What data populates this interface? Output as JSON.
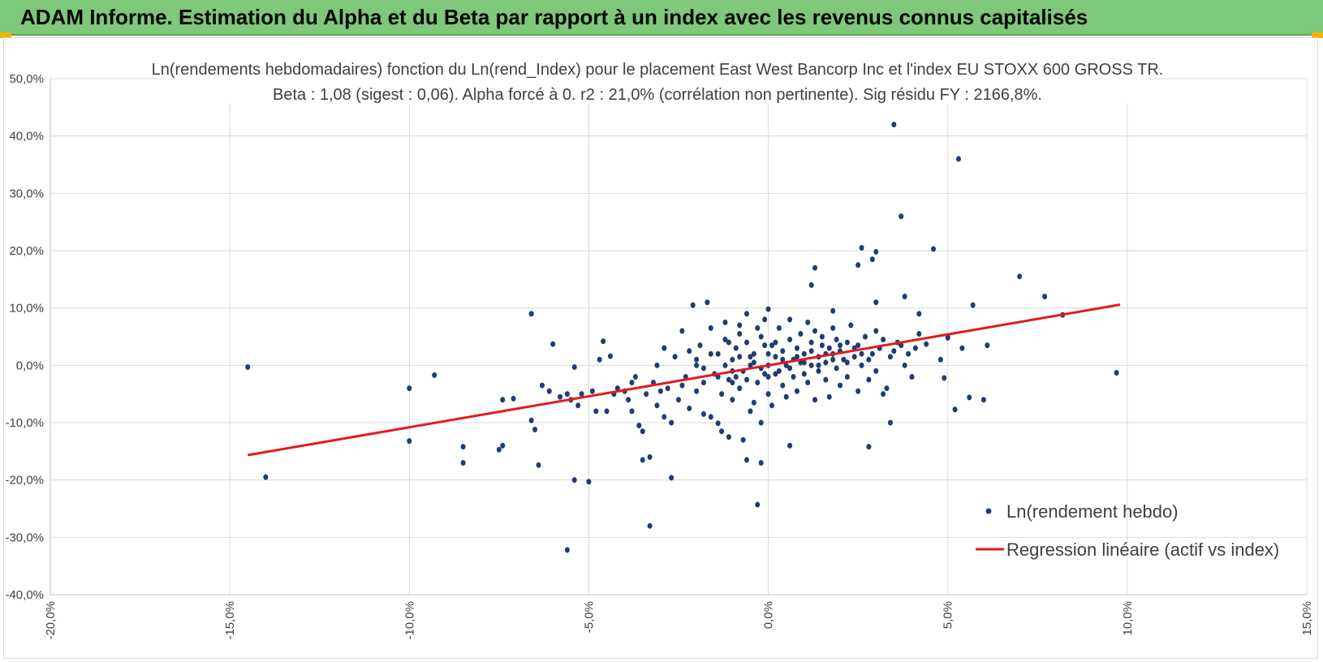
{
  "header": {
    "title": "ADAM Informe. Estimation du Alpha et du Beta par rapport à un index avec les revenus connus capitalisés"
  },
  "colors": {
    "banner": "#7dc87a",
    "points": "#1f3d73",
    "regression": "#e41a1a",
    "grid": "#d9d9d9"
  },
  "chart_data": {
    "type": "scatter",
    "title_line1": "Ln(rendements hebdomadaires) fonction du Ln(rend_Index) pour le placement East West Bancorp Inc et l'index EU STOXX 600 GROSS TR.",
    "title_line2": "Beta : 1,08 (sigest : 0,06). Alpha forcé à 0. r2 : 21,0% (corrélation non pertinente). Sig résidu FY : 2166,8%.",
    "xlim": [
      -0.2,
      0.15
    ],
    "ylim": [
      -0.4,
      0.5
    ],
    "x_ticks": [
      -0.2,
      -0.15,
      -0.1,
      -0.05,
      0.0,
      0.05,
      0.1,
      0.15
    ],
    "x_tick_labels": [
      "-20,0%",
      "-15,0%",
      "-10,0%",
      "-5,0%",
      "0,0%",
      "5,0%",
      "10,0%",
      "15,0%"
    ],
    "y_ticks": [
      0.5,
      0.4,
      0.3,
      0.2,
      0.1,
      0.0,
      -0.1,
      -0.2,
      -0.3,
      -0.4
    ],
    "y_tick_labels": [
      "50,0%",
      "40,0%",
      "30,0%",
      "20,0%",
      "10,0%",
      "0,0%",
      "-10,0%",
      "-20,0%",
      "-30,0%",
      "-40,0%"
    ],
    "grid": true,
    "legend": {
      "position": "bottom-right",
      "series_label": "Ln(rendement hebdo)",
      "regression_label": "Regression linéaire (actif vs index)"
    },
    "regression": {
      "beta": 1.08,
      "alpha": 0,
      "x_range": [
        -0.145,
        0.098
      ]
    },
    "series": [
      {
        "name": "Ln(rendement hebdo)",
        "points": [
          [
            -0.145,
            -0.003
          ],
          [
            -0.14,
            -0.195
          ],
          [
            -0.1,
            -0.04
          ],
          [
            -0.1,
            -0.132
          ],
          [
            -0.093,
            -0.017
          ],
          [
            -0.085,
            -0.142
          ],
          [
            -0.085,
            -0.17
          ],
          [
            -0.075,
            -0.147
          ],
          [
            -0.074,
            -0.14
          ],
          [
            -0.074,
            -0.06
          ],
          [
            -0.071,
            -0.058
          ],
          [
            -0.066,
            0.09
          ],
          [
            -0.066,
            -0.096
          ],
          [
            -0.065,
            -0.112
          ],
          [
            -0.064,
            -0.174
          ],
          [
            -0.063,
            -0.035
          ],
          [
            -0.061,
            -0.045
          ],
          [
            -0.06,
            0.037
          ],
          [
            -0.058,
            -0.055
          ],
          [
            -0.056,
            -0.05
          ],
          [
            -0.056,
            -0.322
          ],
          [
            -0.055,
            -0.06
          ],
          [
            -0.054,
            -0.003
          ],
          [
            -0.054,
            -0.2
          ],
          [
            -0.053,
            -0.07
          ],
          [
            -0.052,
            -0.05
          ],
          [
            -0.05,
            -0.203
          ],
          [
            -0.049,
            -0.045
          ],
          [
            -0.048,
            -0.08
          ],
          [
            -0.047,
            0.01
          ],
          [
            -0.046,
            0.042
          ],
          [
            -0.045,
            -0.08
          ],
          [
            -0.044,
            0.016
          ],
          [
            -0.043,
            -0.05
          ],
          [
            -0.042,
            -0.04
          ],
          [
            -0.04,
            -0.045
          ],
          [
            -0.039,
            -0.06
          ],
          [
            -0.038,
            -0.03
          ],
          [
            -0.038,
            -0.08
          ],
          [
            -0.037,
            -0.02
          ],
          [
            -0.036,
            -0.105
          ],
          [
            -0.035,
            -0.115
          ],
          [
            -0.035,
            -0.165
          ],
          [
            -0.034,
            -0.05
          ],
          [
            -0.033,
            -0.28
          ],
          [
            -0.033,
            -0.16
          ],
          [
            -0.032,
            -0.03
          ],
          [
            -0.031,
            -0.07
          ],
          [
            -0.031,
            0.0
          ],
          [
            -0.03,
            -0.045
          ],
          [
            -0.029,
            -0.09
          ],
          [
            -0.029,
            0.03
          ],
          [
            -0.028,
            -0.04
          ],
          [
            -0.027,
            -0.196
          ],
          [
            -0.027,
            -0.1
          ],
          [
            -0.026,
            0.015
          ],
          [
            -0.025,
            -0.06
          ],
          [
            -0.024,
            -0.035
          ],
          [
            -0.024,
            0.06
          ],
          [
            -0.023,
            -0.02
          ],
          [
            -0.022,
            0.025
          ],
          [
            -0.022,
            -0.075
          ],
          [
            -0.021,
            0.105
          ],
          [
            -0.02,
            -0.045
          ],
          [
            -0.02,
            0.0
          ],
          [
            -0.019,
            0.035
          ],
          [
            -0.018,
            -0.085
          ],
          [
            -0.018,
            -0.03
          ],
          [
            -0.017,
            0.11
          ],
          [
            -0.016,
            0.065
          ],
          [
            -0.016,
            -0.09
          ],
          [
            -0.015,
            -0.015
          ],
          [
            -0.014,
            0.02
          ],
          [
            -0.013,
            -0.05
          ],
          [
            -0.013,
            -0.115
          ],
          [
            -0.012,
            0.045
          ],
          [
            -0.011,
            -0.025
          ],
          [
            -0.011,
            -0.125
          ],
          [
            -0.01,
            0.01
          ],
          [
            -0.01,
            -0.06
          ],
          [
            -0.009,
            0.03
          ],
          [
            -0.008,
            -0.04
          ],
          [
            -0.008,
            0.07
          ],
          [
            -0.007,
            -0.01
          ],
          [
            -0.006,
            0.04
          ],
          [
            -0.005,
            -0.08
          ],
          [
            -0.005,
            0.0
          ],
          [
            -0.004,
            0.02
          ],
          [
            -0.003,
            -0.03
          ],
          [
            -0.002,
            -0.1
          ],
          [
            -0.002,
            0.05
          ],
          [
            -0.001,
            -0.015
          ],
          [
            -0.001,
            0.08
          ],
          [
            0.0,
            0.0
          ],
          [
            0.0,
            -0.05
          ],
          [
            -0.014,
            -0.101
          ],
          [
            -0.012,
            0.075
          ],
          [
            -0.011,
            0.04
          ],
          [
            -0.01,
            -0.03
          ],
          [
            -0.009,
            -0.02
          ],
          [
            -0.008,
            0.055
          ],
          [
            -0.007,
            -0.13
          ],
          [
            -0.006,
            0.09
          ],
          [
            -0.006,
            -0.165
          ],
          [
            -0.005,
            0.015
          ],
          [
            -0.004,
            -0.065
          ],
          [
            -0.003,
            0.065
          ],
          [
            -0.002,
            -0.17
          ],
          [
            -0.001,
            0.035
          ],
          [
            0.0,
            0.098
          ],
          [
            0.0,
            -0.02
          ],
          [
            0.001,
            0.035
          ],
          [
            0.001,
            -0.07
          ],
          [
            0.002,
            0.015
          ],
          [
            0.002,
            0.04
          ],
          [
            0.003,
            -0.01
          ],
          [
            0.003,
            0.065
          ],
          [
            0.004,
            -0.035
          ],
          [
            0.004,
            0.025
          ],
          [
            0.005,
            0.0
          ],
          [
            0.005,
            -0.055
          ],
          [
            0.006,
            0.045
          ],
          [
            0.006,
            0.08
          ],
          [
            0.007,
            -0.02
          ],
          [
            0.007,
            0.01
          ],
          [
            0.008,
            0.03
          ],
          [
            0.008,
            -0.045
          ],
          [
            0.009,
            0.055
          ],
          [
            0.009,
            0.005
          ],
          [
            0.01,
            -0.015
          ],
          [
            0.01,
            0.02
          ],
          [
            0.011,
            0.075
          ],
          [
            0.011,
            -0.03
          ],
          [
            0.012,
            0.04
          ],
          [
            0.012,
            0.0
          ],
          [
            0.013,
            -0.06
          ],
          [
            0.013,
            0.06
          ],
          [
            0.014,
            0.015
          ],
          [
            0.014,
            -0.01
          ],
          [
            0.015,
            0.035
          ],
          [
            0.015,
            0.05
          ],
          [
            0.016,
            -0.025
          ],
          [
            0.016,
            0.005
          ],
          [
            0.017,
            0.03
          ],
          [
            0.017,
            -0.055
          ],
          [
            0.018,
            0.02
          ],
          [
            0.018,
            0.065
          ],
          [
            0.019,
            -0.005
          ],
          [
            0.019,
            0.045
          ],
          [
            0.02,
            0.025
          ],
          [
            0.02,
            -0.035
          ],
          [
            0.021,
            0.01
          ],
          [
            0.022,
            0.04
          ],
          [
            0.022,
            -0.02
          ],
          [
            0.023,
            0.07
          ],
          [
            0.024,
            0.015
          ],
          [
            0.025,
            -0.045
          ],
          [
            0.025,
            0.035
          ],
          [
            0.026,
            0.0
          ],
          [
            0.027,
            0.05
          ],
          [
            0.028,
            -0.025
          ],
          [
            0.029,
            0.02
          ],
          [
            0.03,
            0.06
          ],
          [
            0.03,
            -0.01
          ],
          [
            0.031,
            0.03
          ],
          [
            0.032,
            0.045
          ],
          [
            0.033,
            -0.04
          ],
          [
            0.034,
            0.015
          ],
          [
            0.035,
            0.025
          ],
          [
            0.036,
            0.04
          ],
          [
            0.037,
            0.035
          ],
          [
            0.038,
            0.0
          ],
          [
            0.039,
            0.02
          ],
          [
            0.04,
            -0.02
          ],
          [
            0.041,
            0.03
          ],
          [
            -0.02,
            0.01
          ],
          [
            -0.018,
            -0.005
          ],
          [
            -0.016,
            0.02
          ],
          [
            -0.014,
            -0.02
          ],
          [
            -0.012,
            0.0
          ],
          [
            -0.01,
            -0.01
          ],
          [
            -0.008,
            0.015
          ],
          [
            -0.006,
            -0.025
          ],
          [
            -0.004,
            0.005
          ],
          [
            -0.002,
            -0.005
          ],
          [
            0.0,
            0.02
          ],
          [
            0.002,
            -0.015
          ],
          [
            0.004,
            0.01
          ],
          [
            0.006,
            -0.005
          ],
          [
            0.008,
            0.015
          ],
          [
            0.01,
            0.005
          ],
          [
            0.012,
            0.025
          ],
          [
            0.014,
            0.0
          ],
          [
            0.016,
            0.02
          ],
          [
            0.018,
            0.01
          ],
          [
            0.02,
            0.035
          ],
          [
            0.022,
            0.005
          ],
          [
            0.024,
            0.03
          ],
          [
            0.026,
            0.02
          ],
          [
            0.028,
            0.01
          ],
          [
            -0.003,
            -0.243
          ],
          [
            0.006,
            -0.14
          ],
          [
            0.012,
            0.14
          ],
          [
            0.013,
            0.17
          ],
          [
            0.018,
            0.095
          ],
          [
            0.025,
            0.175
          ],
          [
            0.026,
            0.205
          ],
          [
            0.029,
            0.185
          ],
          [
            0.03,
            0.11
          ],
          [
            0.03,
            0.198
          ],
          [
            0.028,
            -0.142
          ],
          [
            0.032,
            -0.05
          ],
          [
            0.034,
            -0.1
          ],
          [
            0.035,
            0.42
          ],
          [
            0.037,
            0.26
          ],
          [
            0.038,
            0.12
          ],
          [
            0.042,
            0.09
          ],
          [
            0.046,
            0.203
          ],
          [
            0.048,
            0.01
          ],
          [
            0.049,
            -0.022
          ],
          [
            0.05,
            0.05
          ],
          [
            0.052,
            -0.077
          ],
          [
            0.053,
            0.36
          ],
          [
            0.054,
            0.03
          ],
          [
            0.056,
            -0.056
          ],
          [
            0.057,
            0.105
          ],
          [
            0.06,
            -0.06
          ],
          [
            0.061,
            0.035
          ],
          [
            0.07,
            0.155
          ],
          [
            0.077,
            0.12
          ],
          [
            0.082,
            0.088
          ],
          [
            0.097,
            -0.013
          ],
          [
            0.05,
            0.048
          ],
          [
            0.044,
            0.037
          ],
          [
            0.042,
            0.055
          ]
        ]
      }
    ]
  }
}
